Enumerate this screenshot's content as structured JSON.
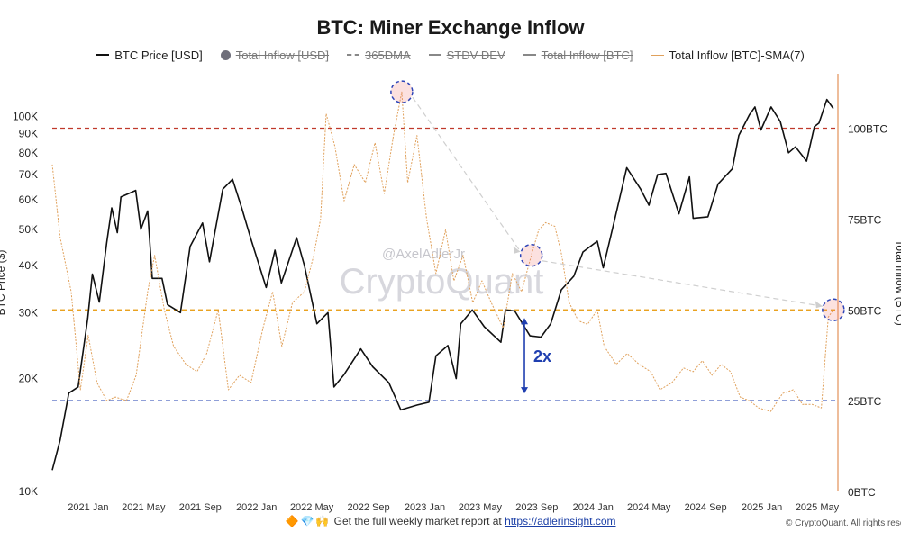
{
  "chart_data": {
    "type": "line",
    "title": "BTC: Miner Exchange Inflow",
    "ylabel_left": "BTC Price ($)",
    "ylabel_right": "Total Inflow (BTC)",
    "y_left_scale": "log",
    "y_left_range": [
      10000,
      130000
    ],
    "y_right_range": [
      0,
      115
    ],
    "x_range": [
      "2020-10-15",
      "2025-06-15"
    ],
    "x_ticks": [
      {
        "date": "2021-01-01",
        "label": "2021 Jan"
      },
      {
        "date": "2021-05-01",
        "label": "2021 May"
      },
      {
        "date": "2021-09-01",
        "label": "2021 Sep"
      },
      {
        "date": "2022-01-01",
        "label": "2022 Jan"
      },
      {
        "date": "2022-05-01",
        "label": "2022 May"
      },
      {
        "date": "2022-09-01",
        "label": "2022 Sep"
      },
      {
        "date": "2023-01-01",
        "label": "2023 Jan"
      },
      {
        "date": "2023-05-01",
        "label": "2023 May"
      },
      {
        "date": "2023-09-01",
        "label": "2023 Sep"
      },
      {
        "date": "2024-01-01",
        "label": "2024 Jan"
      },
      {
        "date": "2024-05-01",
        "label": "2024 May"
      },
      {
        "date": "2024-09-01",
        "label": "2024 Sep"
      },
      {
        "date": "2025-01-01",
        "label": "2025 Jan"
      },
      {
        "date": "2025-05-01",
        "label": "2025 May"
      }
    ],
    "y_left_ticks": [
      {
        "value": 10000,
        "label": "10K"
      },
      {
        "value": 20000,
        "label": "20K"
      },
      {
        "value": 30000,
        "label": "30K"
      },
      {
        "value": 40000,
        "label": "40K"
      },
      {
        "value": 50000,
        "label": "50K"
      },
      {
        "value": 60000,
        "label": "60K"
      },
      {
        "value": 70000,
        "label": "70K"
      },
      {
        "value": 80000,
        "label": "80K"
      },
      {
        "value": 90000,
        "label": "90K"
      },
      {
        "value": 100000,
        "label": "100K"
      }
    ],
    "y_right_ticks": [
      {
        "value": 0,
        "label": "0BTC"
      },
      {
        "value": 25,
        "label": "25BTC"
      },
      {
        "value": 50,
        "label": "50BTC"
      },
      {
        "value": 75,
        "label": "75BTC"
      },
      {
        "value": 100,
        "label": "100BTC"
      }
    ],
    "reference_lines": [
      {
        "axis": "right",
        "value": 100,
        "color": "#c0392b"
      },
      {
        "axis": "right",
        "value": 50,
        "color": "#e69500"
      },
      {
        "axis": "right",
        "value": 25,
        "color": "#1f3fb0"
      }
    ],
    "legend": [
      {
        "name": "BTC Price [USD]",
        "active": true,
        "marker": "line"
      },
      {
        "name": "Total Inflow [USD]",
        "active": false,
        "marker": "dot"
      },
      {
        "name": "365DMA",
        "active": false,
        "marker": "dash"
      },
      {
        "name": "STDV DEV",
        "active": false,
        "marker": "line"
      },
      {
        "name": "Total Inflow [BTC]",
        "active": false,
        "marker": "line"
      },
      {
        "name": "Total Inflow [BTC]-SMA(7)",
        "active": true,
        "marker": "orange-line"
      }
    ],
    "series": [
      {
        "name": "BTC Price [USD]",
        "axis": "left",
        "color": "#111111",
        "points": [
          [
            "2020-10-15",
            11400
          ],
          [
            "2020-11-01",
            13700
          ],
          [
            "2020-11-20",
            18300
          ],
          [
            "2020-12-10",
            19000
          ],
          [
            "2020-12-31",
            29000
          ],
          [
            "2021-01-10",
            38000
          ],
          [
            "2021-01-25",
            32000
          ],
          [
            "2021-02-10",
            46000
          ],
          [
            "2021-02-21",
            57000
          ],
          [
            "2021-03-05",
            49000
          ],
          [
            "2021-03-13",
            61000
          ],
          [
            "2021-04-14",
            63500
          ],
          [
            "2021-04-25",
            50000
          ],
          [
            "2021-05-10",
            56000
          ],
          [
            "2021-05-20",
            37000
          ],
          [
            "2021-06-10",
            37000
          ],
          [
            "2021-06-22",
            31500
          ],
          [
            "2021-07-20",
            30000
          ],
          [
            "2021-08-10",
            45000
          ],
          [
            "2021-09-06",
            52000
          ],
          [
            "2021-09-21",
            41000
          ],
          [
            "2021-10-20",
            64000
          ],
          [
            "2021-11-10",
            68000
          ],
          [
            "2021-11-30",
            57000
          ],
          [
            "2021-12-20",
            47000
          ],
          [
            "2022-01-22",
            35000
          ],
          [
            "2022-02-10",
            44000
          ],
          [
            "2022-02-24",
            36000
          ],
          [
            "2022-03-29",
            47500
          ],
          [
            "2022-04-15",
            40000
          ],
          [
            "2022-05-12",
            28000
          ],
          [
            "2022-06-05",
            30000
          ],
          [
            "2022-06-18",
            19000
          ],
          [
            "2022-07-10",
            20500
          ],
          [
            "2022-08-15",
            24000
          ],
          [
            "2022-09-10",
            21500
          ],
          [
            "2022-10-15",
            19500
          ],
          [
            "2022-11-10",
            16500
          ],
          [
            "2022-12-15",
            17000
          ],
          [
            "2023-01-10",
            17300
          ],
          [
            "2023-01-25",
            23000
          ],
          [
            "2023-02-20",
            24500
          ],
          [
            "2023-03-10",
            20000
          ],
          [
            "2023-03-20",
            28000
          ],
          [
            "2023-04-14",
            30500
          ],
          [
            "2023-05-10",
            27500
          ],
          [
            "2023-06-15",
            25000
          ],
          [
            "2023-06-25",
            30500
          ],
          [
            "2023-07-15",
            30300
          ],
          [
            "2023-08-17",
            26000
          ],
          [
            "2023-09-10",
            25800
          ],
          [
            "2023-10-01",
            28000
          ],
          [
            "2023-10-24",
            34500
          ],
          [
            "2023-11-20",
            37500
          ],
          [
            "2023-12-10",
            43500
          ],
          [
            "2024-01-10",
            46500
          ],
          [
            "2024-01-23",
            39500
          ],
          [
            "2024-02-15",
            52000
          ],
          [
            "2024-03-14",
            73000
          ],
          [
            "2024-04-13",
            64000
          ],
          [
            "2024-05-01",
            58000
          ],
          [
            "2024-05-20",
            70000
          ],
          [
            "2024-06-07",
            70500
          ],
          [
            "2024-07-05",
            55000
          ],
          [
            "2024-07-28",
            69000
          ],
          [
            "2024-08-05",
            53500
          ],
          [
            "2024-09-06",
            54000
          ],
          [
            "2024-09-28",
            66000
          ],
          [
            "2024-10-29",
            72500
          ],
          [
            "2024-11-12",
            89000
          ],
          [
            "2024-12-05",
            101000
          ],
          [
            "2024-12-17",
            106000
          ],
          [
            "2024-12-30",
            92000
          ],
          [
            "2025-01-21",
            106000
          ],
          [
            "2025-02-10",
            97000
          ],
          [
            "2025-02-28",
            80000
          ],
          [
            "2025-03-15",
            83000
          ],
          [
            "2025-04-08",
            76000
          ],
          [
            "2025-04-25",
            94000
          ],
          [
            "2025-05-05",
            96000
          ],
          [
            "2025-05-22",
            111000
          ],
          [
            "2025-06-05",
            105000
          ]
        ]
      },
      {
        "name": "Total Inflow [BTC]-SMA(7)",
        "axis": "right",
        "color": "#e0a15c",
        "points": [
          [
            "2020-10-15",
            90
          ],
          [
            "2020-11-01",
            70
          ],
          [
            "2020-11-25",
            55
          ],
          [
            "2020-12-15",
            28
          ],
          [
            "2021-01-01",
            43
          ],
          [
            "2021-01-20",
            30
          ],
          [
            "2021-02-10",
            25
          ],
          [
            "2021-03-01",
            26
          ],
          [
            "2021-03-25",
            25
          ],
          [
            "2021-04-15",
            32
          ],
          [
            "2021-05-10",
            55
          ],
          [
            "2021-05-25",
            65
          ],
          [
            "2021-06-15",
            50
          ],
          [
            "2021-07-05",
            40
          ],
          [
            "2021-08-01",
            35
          ],
          [
            "2021-08-25",
            33
          ],
          [
            "2021-09-15",
            38
          ],
          [
            "2021-10-10",
            50
          ],
          [
            "2021-11-01",
            28
          ],
          [
            "2021-11-25",
            32
          ],
          [
            "2021-12-20",
            30
          ],
          [
            "2022-01-15",
            45
          ],
          [
            "2022-02-05",
            55
          ],
          [
            "2022-02-25",
            40
          ],
          [
            "2022-03-20",
            52
          ],
          [
            "2022-04-15",
            55
          ],
          [
            "2022-05-05",
            65
          ],
          [
            "2022-05-20",
            75
          ],
          [
            "2022-06-01",
            104
          ],
          [
            "2022-06-20",
            95
          ],
          [
            "2022-07-10",
            80
          ],
          [
            "2022-08-01",
            90
          ],
          [
            "2022-08-25",
            85
          ],
          [
            "2022-09-15",
            96
          ],
          [
            "2022-10-05",
            82
          ],
          [
            "2022-10-25",
            98
          ],
          [
            "2022-11-12",
            110
          ],
          [
            "2022-11-25",
            85
          ],
          [
            "2022-12-15",
            98
          ],
          [
            "2023-01-05",
            75
          ],
          [
            "2023-01-25",
            60
          ],
          [
            "2023-02-15",
            72
          ],
          [
            "2023-03-05",
            58
          ],
          [
            "2023-03-25",
            65
          ],
          [
            "2023-04-15",
            52
          ],
          [
            "2023-05-05",
            58
          ],
          [
            "2023-05-25",
            52
          ],
          [
            "2023-06-20",
            45
          ],
          [
            "2023-07-10",
            60
          ],
          [
            "2023-07-30",
            55
          ],
          [
            "2023-08-20",
            65
          ],
          [
            "2023-09-05",
            72
          ],
          [
            "2023-09-20",
            74
          ],
          [
            "2023-10-10",
            73
          ],
          [
            "2023-10-25",
            65
          ],
          [
            "2023-11-10",
            52
          ],
          [
            "2023-11-30",
            47
          ],
          [
            "2023-12-20",
            46
          ],
          [
            "2024-01-10",
            50
          ],
          [
            "2024-01-25",
            40
          ],
          [
            "2024-02-20",
            35
          ],
          [
            "2024-03-15",
            38
          ],
          [
            "2024-04-10",
            35
          ],
          [
            "2024-05-05",
            33
          ],
          [
            "2024-05-25",
            28
          ],
          [
            "2024-06-20",
            30
          ],
          [
            "2024-07-15",
            34
          ],
          [
            "2024-08-05",
            33
          ],
          [
            "2024-08-25",
            36
          ],
          [
            "2024-09-15",
            32
          ],
          [
            "2024-10-05",
            35
          ],
          [
            "2024-10-25",
            33
          ],
          [
            "2024-11-15",
            26
          ],
          [
            "2024-12-05",
            25
          ],
          [
            "2024-12-25",
            23
          ],
          [
            "2025-01-20",
            22
          ],
          [
            "2025-02-15",
            27
          ],
          [
            "2025-03-10",
            28
          ],
          [
            "2025-03-30",
            24
          ],
          [
            "2025-04-20",
            24
          ],
          [
            "2025-05-10",
            23
          ],
          [
            "2025-05-25",
            48
          ],
          [
            "2025-06-05",
            50
          ]
        ]
      }
    ],
    "annotations": {
      "arrow_label": "2x",
      "watermark_user": "@AxelAdlerJr",
      "watermark_brand": "CryptoQuant"
    }
  },
  "footer": {
    "emoji": "🔶💎🙌",
    "text": "Get the full weekly market report at",
    "link": "https://adlerinsight.com",
    "copyright": "© CryptoQuant. All rights reserved"
  }
}
